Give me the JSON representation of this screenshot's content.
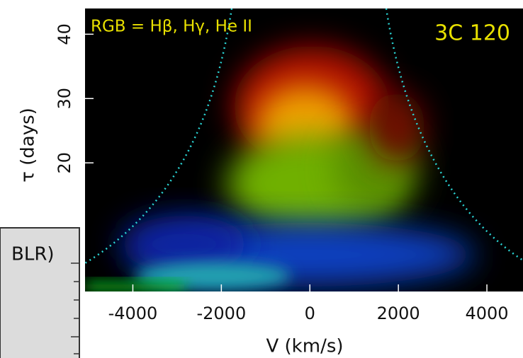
{
  "chart_data": {
    "type": "heatmap",
    "annotations": [
      "RGB = Hβ, Hγ, He II",
      "3C 120",
      "BLR)"
    ],
    "xlabel": "V (km/s)",
    "ylabel": "τ (days)",
    "xlim": [
      -5000,
      4800
    ],
    "ylim": [
      0,
      44
    ],
    "xticks": [
      -4000,
      -2000,
      0,
      2000,
      4000
    ],
    "yticks": [
      20,
      30,
      40
    ]
  }
}
